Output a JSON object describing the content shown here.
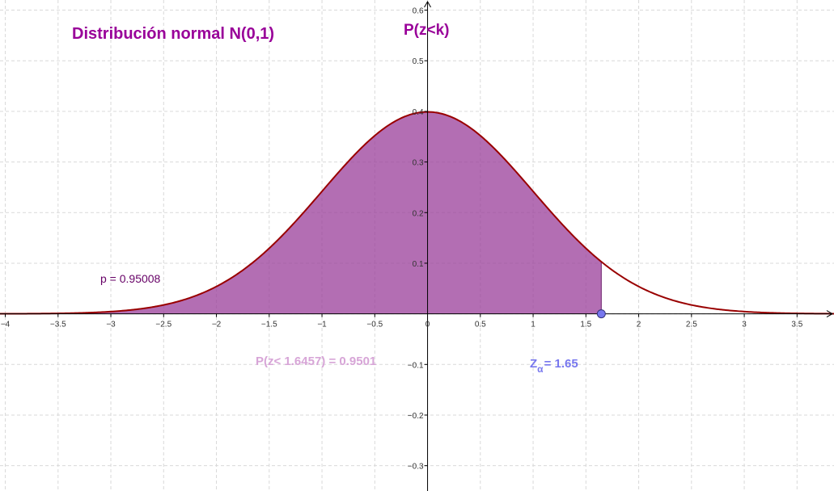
{
  "chart_data": {
    "type": "area",
    "title": "Distribución normal N(0,1)",
    "ylabel": "P(z<k)",
    "xlabel": "",
    "xlim": [
      -4.05,
      3.85
    ],
    "ylim": [
      -0.35,
      0.62
    ],
    "x_ticks": [
      -4,
      -3.5,
      -3,
      -2.5,
      -2,
      -1.5,
      -1,
      -0.5,
      0,
      0.5,
      1,
      1.5,
      2,
      2.5,
      3,
      3.5
    ],
    "x_tick_labels": [
      "−4",
      "−3.5",
      "−3",
      "−2.5",
      "−2",
      "−1.5",
      "−1",
      "−0.5",
      "0",
      "0.5",
      "1",
      "1.5",
      "2",
      "2.5",
      "3",
      "3.5"
    ],
    "y_ticks": [
      -0.3,
      -0.2,
      -0.1,
      0.1,
      0.2,
      0.3,
      0.4,
      0.5,
      0.6
    ],
    "y_tick_labels": [
      "−0.3",
      "−0.2",
      "−0.1",
      "0.1",
      "0.2",
      "0.3",
      "0.4",
      "0.5",
      "0.6"
    ],
    "grid": true,
    "series": [
      {
        "type": "line",
        "mean": 0,
        "sd": 1,
        "color": "#990000"
      },
      {
        "type": "area",
        "from": -4.05,
        "to": 1.6457,
        "color": "#993e99",
        "opacity": 0.75
      }
    ],
    "point": {
      "x": 1.6457,
      "y": 0,
      "color": "#7777ee"
    },
    "annotations": {
      "p_value": "p = 0.95008",
      "probability": "P(z< 1.6457) = 0.9501",
      "z_symbol": "Z",
      "z_subscript": "α",
      "z_value": "= 1.65"
    },
    "colors": {
      "title": "#990099",
      "ylabel": "#990099",
      "p_label": "#660066",
      "probability": "#d7a5d7",
      "z_label": "#7777ee",
      "axis": "#000000",
      "grid": "#d9d9d9"
    }
  }
}
